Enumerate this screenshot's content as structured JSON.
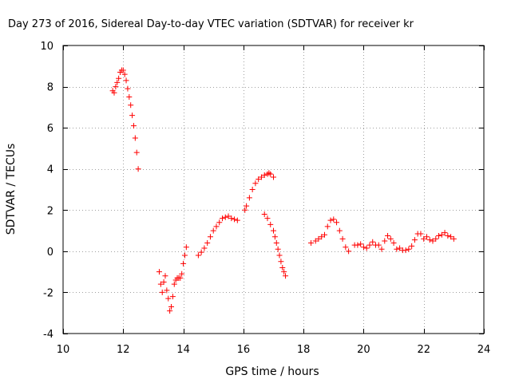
{
  "chart_data": {
    "type": "scatter",
    "title": "Day 273 of 2016, Sidereal Day-to-day VTEC variation (SDTVAR) for receiver kr",
    "xlabel": "GPS time / hours",
    "ylabel": "SDTVAR / TECUs",
    "xlim": [
      10,
      24
    ],
    "ylim": [
      -4,
      10
    ],
    "x_ticks": [
      "10",
      "12",
      "14",
      "16",
      "18",
      "20",
      "22",
      "24"
    ],
    "y_ticks": [
      "-4",
      "-2",
      "0",
      "2",
      "4",
      "6",
      "8",
      "10"
    ],
    "grid": true,
    "legend": "none",
    "marker": "plus",
    "color": "#ff0000",
    "series": [
      {
        "x": [
          11.65,
          11.7,
          11.75,
          11.8,
          11.85,
          11.9,
          11.95,
          12.0,
          12.05,
          12.1,
          12.15,
          12.2,
          12.25,
          12.3,
          12.35,
          12.4,
          12.45,
          12.5
        ],
        "y": [
          7.8,
          7.7,
          8.0,
          8.2,
          8.4,
          8.7,
          8.8,
          8.8,
          8.6,
          8.3,
          7.9,
          7.5,
          7.1,
          6.6,
          6.1,
          5.5,
          4.8,
          4.0
        ]
      },
      {
        "x": [
          13.2,
          13.25,
          13.3,
          13.35,
          13.4,
          13.45,
          13.5,
          13.55,
          13.6,
          13.65,
          13.7,
          13.75,
          13.8,
          13.85,
          13.9,
          13.95,
          14.0,
          14.05,
          14.1
        ],
        "y": [
          -1.0,
          -1.6,
          -2.0,
          -1.5,
          -1.2,
          -1.9,
          -2.3,
          -2.9,
          -2.7,
          -2.2,
          -1.6,
          -1.4,
          -1.3,
          -1.3,
          -1.3,
          -1.1,
          -0.6,
          -0.2,
          0.2
        ]
      },
      {
        "x": [
          14.5,
          14.6,
          14.7,
          14.8,
          14.9,
          15.0,
          15.1,
          15.2,
          15.3,
          15.4,
          15.5,
          15.6,
          15.7,
          15.8
        ],
        "y": [
          -0.2,
          -0.05,
          0.15,
          0.4,
          0.7,
          1.0,
          1.2,
          1.4,
          1.6,
          1.65,
          1.7,
          1.6,
          1.55,
          1.5
        ]
      },
      {
        "x": [
          16.05,
          16.1,
          16.2,
          16.3,
          16.4,
          16.5,
          16.6,
          16.7,
          16.8,
          16.85,
          16.9,
          17.0
        ],
        "y": [
          2.0,
          2.2,
          2.6,
          3.0,
          3.3,
          3.5,
          3.6,
          3.7,
          3.75,
          3.8,
          3.75,
          3.6
        ]
      },
      {
        "x": [
          16.7,
          16.8,
          16.9,
          17.0,
          17.05,
          17.1,
          17.15,
          17.2,
          17.25,
          17.3,
          17.35,
          17.4
        ],
        "y": [
          1.8,
          1.6,
          1.3,
          1.0,
          0.7,
          0.4,
          0.1,
          -0.2,
          -0.5,
          -0.8,
          -1.0,
          -1.2
        ]
      },
      {
        "x": [
          18.25,
          18.4,
          18.5,
          18.6,
          18.7,
          18.8,
          18.9,
          19.0,
          19.1,
          19.2,
          19.3,
          19.4,
          19.5
        ],
        "y": [
          0.4,
          0.5,
          0.6,
          0.7,
          0.8,
          1.2,
          1.5,
          1.55,
          1.4,
          1.0,
          0.6,
          0.2,
          0.0
        ]
      },
      {
        "x": [
          19.7,
          19.8,
          19.9,
          20.0,
          20.1,
          20.2,
          20.3,
          20.4,
          20.5,
          20.6,
          20.7,
          20.8,
          20.9,
          21.0,
          21.1,
          21.2,
          21.3,
          21.4,
          21.5,
          21.6,
          21.7,
          21.8,
          21.9,
          22.0,
          22.1,
          22.2,
          22.3,
          22.4,
          22.5,
          22.6,
          22.7,
          22.8,
          22.9,
          23.0
        ],
        "y": [
          0.3,
          0.3,
          0.35,
          0.2,
          0.15,
          0.3,
          0.45,
          0.3,
          0.3,
          0.1,
          0.5,
          0.75,
          0.6,
          0.4,
          0.1,
          0.15,
          0.05,
          0.05,
          0.1,
          0.25,
          0.55,
          0.85,
          0.85,
          0.6,
          0.7,
          0.55,
          0.5,
          0.6,
          0.75,
          0.8,
          0.9,
          0.75,
          0.7,
          0.6
        ]
      }
    ]
  }
}
